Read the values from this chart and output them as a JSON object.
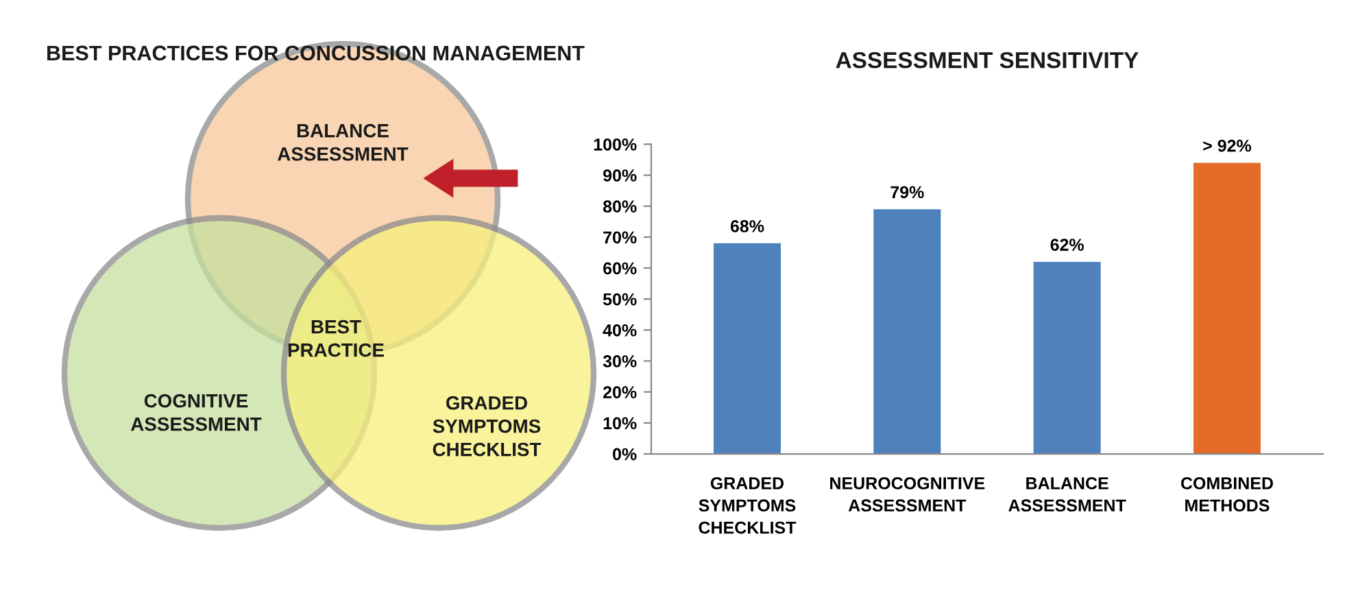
{
  "chart_data": [
    {
      "type": "other",
      "title": "BEST PRACTICES FOR CONCUSSION MANAGEMENT",
      "annotations": [
        "BALANCE\nASSESSMENT",
        "COGNITIVE\nASSESSMENT",
        "GRADED\nSYMPTOMS\nCHECKLIST",
        "BEST\nPRACTICE"
      ]
    },
    {
      "type": "bar",
      "title": "ASSESSMENT SENSITIVITY",
      "categories": [
        "GRADED\nSYMPTOMS\nCHECKLIST",
        "NEUROCOGNITIVE\nASSESSMENT",
        "BALANCE\nASSESSMENT",
        "COMBINED\nMETHODS"
      ],
      "values": [
        68,
        79,
        62,
        94
      ],
      "colors": [
        "#4f81bd",
        "#4f81bd",
        "#4f81bd",
        "#e46c28"
      ],
      "value_labels": [
        "68%",
        "79%",
        "62%",
        "> 92%"
      ],
      "ylim": [
        0,
        100
      ],
      "yticks": [
        {
          "value": 0,
          "label": "0%"
        },
        {
          "value": 10,
          "label": "10%"
        },
        {
          "value": 20,
          "label": "20%"
        },
        {
          "value": 30,
          "label": "30%"
        },
        {
          "value": 40,
          "label": "40%"
        },
        {
          "value": 50,
          "label": "50%"
        },
        {
          "value": 60,
          "label": "60%"
        },
        {
          "value": 70,
          "label": "70%"
        },
        {
          "value": 80,
          "label": "80%"
        },
        {
          "value": 90,
          "label": "90%"
        },
        {
          "value": 100,
          "label": "100%"
        }
      ],
      "grid": false,
      "legend": false
    }
  ]
}
